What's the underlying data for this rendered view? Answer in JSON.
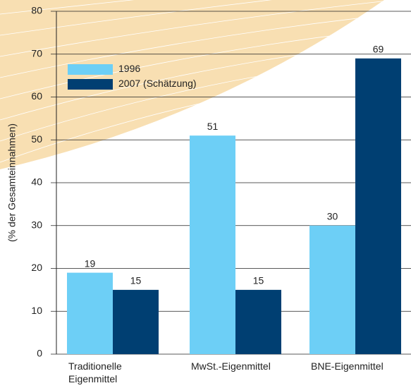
{
  "chart_data": {
    "type": "bar",
    "ylabel": "(% der Gesamteinnahmen)",
    "categories": [
      "Traditionelle\nEigenmittel",
      "MwSt.-Eigenmittel",
      "BNE-Eigenmittel"
    ],
    "series": [
      {
        "name": "1996",
        "color": "#6dcff6",
        "values": [
          19,
          51,
          30
        ]
      },
      {
        "name": "2007 (Schätzung)",
        "color": "#003f72",
        "values": [
          15,
          15,
          69
        ]
      }
    ],
    "ylim": [
      0,
      80
    ],
    "yticks": [
      0,
      10,
      20,
      30,
      40,
      50,
      60,
      70,
      80
    ],
    "grid": true,
    "legend": "upper left"
  }
}
